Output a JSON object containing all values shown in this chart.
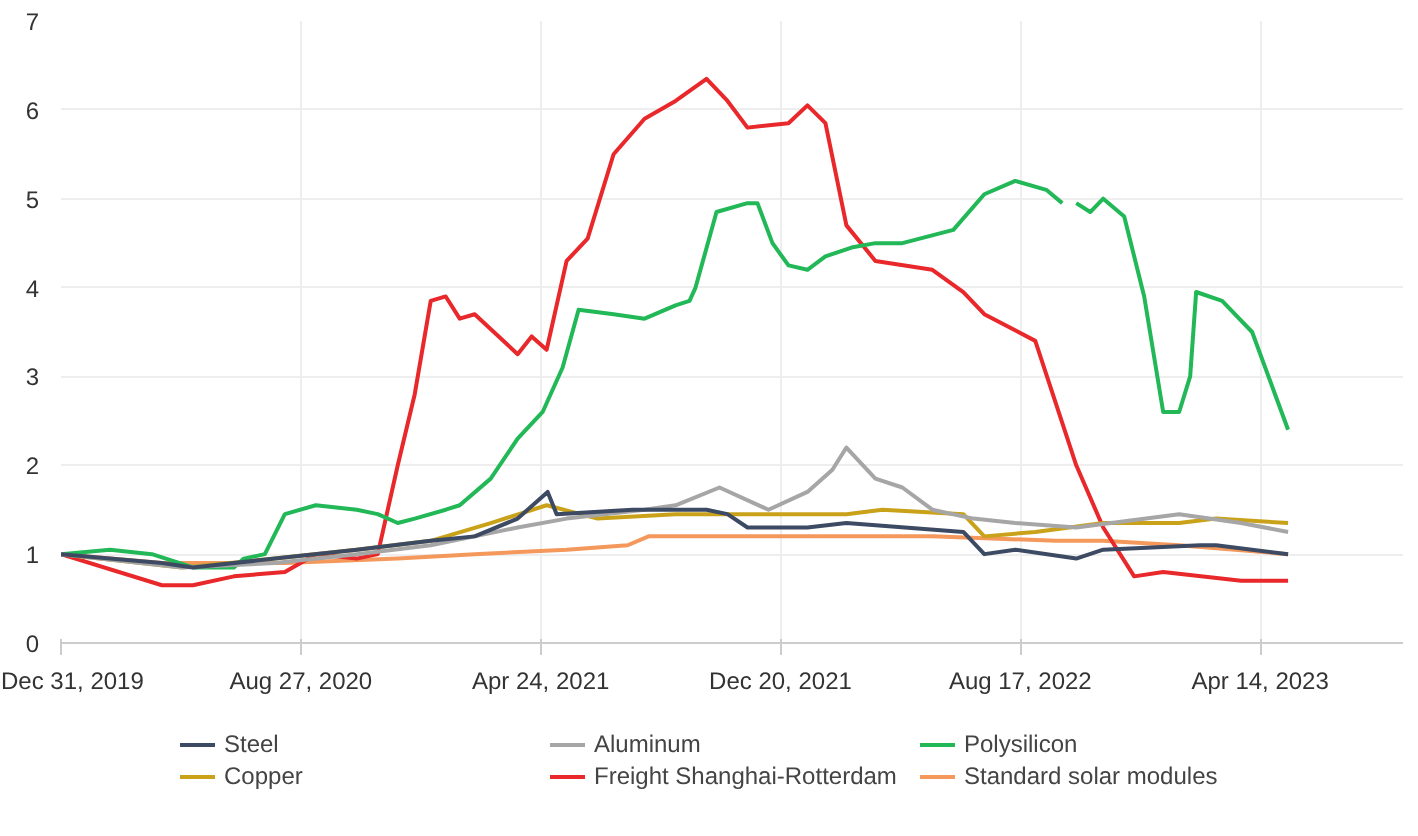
{
  "chart_data": {
    "type": "line",
    "xlim": [
      "2019-12-31",
      "2023-09-04"
    ],
    "ylim": [
      0,
      7
    ],
    "yticks": [
      0,
      1,
      2,
      3,
      4,
      5,
      6,
      7
    ],
    "xticks": [
      {
        "value": "2019-12-31",
        "label": "Dec 31, 2019"
      },
      {
        "value": "2020-08-27",
        "label": "Aug 27, 2020"
      },
      {
        "value": "2021-04-24",
        "label": "Apr 24, 2021"
      },
      {
        "value": "2021-12-20",
        "label": "Dec 20, 2021"
      },
      {
        "value": "2022-08-17",
        "label": "Aug 17, 2022"
      },
      {
        "value": "2023-04-14",
        "label": "Apr 14, 2023"
      }
    ],
    "grid": true,
    "legend": "bottom",
    "line_style": "solid",
    "series": [
      {
        "name": "Steel",
        "color": "#3d4a63",
        "x": [
          "2019-12-31",
          "2020-04-10",
          "2020-05-11",
          "2020-08-01",
          "2020-10-22",
          "2021-01-04",
          "2021-02-17",
          "2021-04-01",
          "2021-05-01",
          "2021-05-10",
          "2021-07-25",
          "2021-10-07",
          "2021-10-28",
          "2021-11-17",
          "2022-01-16",
          "2022-02-24",
          "2022-06-21",
          "2022-07-12",
          "2022-08-12",
          "2022-10-12",
          "2022-11-08",
          "2023-02-13",
          "2023-03-01",
          "2023-05-12"
        ],
        "values": [
          1.0,
          0.9,
          0.85,
          0.95,
          1.05,
          1.15,
          1.2,
          1.4,
          1.7,
          1.45,
          1.5,
          1.5,
          1.45,
          1.3,
          1.3,
          1.35,
          1.25,
          1.0,
          1.05,
          0.95,
          1.05,
          1.1,
          1.1,
          1.0
        ]
      },
      {
        "name": "Aluminum",
        "color": "#a6a6a6",
        "x": [
          "2019-12-31",
          "2020-04-30",
          "2020-08-01",
          "2020-10-22",
          "2021-01-04",
          "2021-04-01",
          "2021-05-20",
          "2021-08-06",
          "2021-09-06",
          "2021-10-20",
          "2021-12-08",
          "2022-01-16",
          "2022-02-10",
          "2022-02-24",
          "2022-03-25",
          "2022-04-21",
          "2022-05-21",
          "2022-07-01",
          "2022-08-12",
          "2022-10-12",
          "2023-01-23",
          "2023-03-26",
          "2023-05-12"
        ],
        "values": [
          1.0,
          0.85,
          0.9,
          1.0,
          1.1,
          1.3,
          1.4,
          1.5,
          1.55,
          1.75,
          1.5,
          1.7,
          1.95,
          2.2,
          1.85,
          1.75,
          1.5,
          1.4,
          1.35,
          1.3,
          1.45,
          1.35,
          1.25
        ]
      },
      {
        "name": "Polysilicon",
        "color": "#22b857",
        "x": [
          "2019-12-31",
          "2020-02-18",
          "2020-03-31",
          "2020-05-11",
          "2020-06-21",
          "2020-07-01",
          "2020-07-22",
          "2020-08-11",
          "2020-09-11",
          "2020-10-22",
          "2020-11-12",
          "2020-12-02",
          "2020-12-19",
          "2021-01-19",
          "2021-02-02",
          "2021-03-05",
          "2021-04-01",
          "2021-04-26",
          "2021-05-16",
          "2021-06-01",
          "2021-07-06",
          "2021-08-06",
          "2021-09-06",
          "2021-09-20",
          "2021-09-26",
          "2021-10-17",
          "2021-11-17",
          "2021-11-27",
          "2021-12-12",
          "2021-12-28",
          "2022-01-16",
          "2022-02-03",
          "2022-03-01",
          "2022-03-25",
          "2022-04-21",
          "2022-06-11",
          "2022-07-12",
          "2022-08-12",
          "2022-09-12",
          "2022-09-28",
          "2022-10-05",
          "2022-10-12",
          "2022-10-26",
          "2022-11-08",
          "2022-11-29",
          "2022-12-19",
          "2023-01-07",
          "2023-01-23",
          "2023-02-03",
          "2023-02-09",
          "2023-03-07",
          "2023-04-06",
          "2023-05-12"
        ],
        "values": [
          1.0,
          1.05,
          1.0,
          0.85,
          0.85,
          0.95,
          1.0,
          1.45,
          1.55,
          1.5,
          1.45,
          1.35,
          1.4,
          1.5,
          1.55,
          1.85,
          2.3,
          2.6,
          3.1,
          3.75,
          3.7,
          3.65,
          3.8,
          3.85,
          4.0,
          4.85,
          4.95,
          4.95,
          4.5,
          4.25,
          4.2,
          4.35,
          4.45,
          4.5,
          4.5,
          4.65,
          5.05,
          5.2,
          5.1,
          4.95,
          null,
          4.95,
          4.85,
          5.0,
          4.8,
          3.9,
          2.6,
          2.6,
          3.0,
          3.95,
          3.85,
          3.5,
          2.4
        ]
      },
      {
        "name": "Copper",
        "color": "#c9a21a",
        "x": [
          "2019-12-31",
          "2020-04-30",
          "2020-08-01",
          "2020-10-22",
          "2021-01-04",
          "2021-03-05",
          "2021-04-30",
          "2021-06-20",
          "2021-09-06",
          "2021-12-08",
          "2022-02-24",
          "2022-04-01",
          "2022-06-21",
          "2022-07-12",
          "2022-09-01",
          "2022-11-08",
          "2023-01-23",
          "2023-03-01",
          "2023-05-12"
        ],
        "values": [
          1.0,
          0.85,
          0.95,
          1.05,
          1.15,
          1.35,
          1.55,
          1.4,
          1.45,
          1.45,
          1.45,
          1.5,
          1.45,
          1.2,
          1.25,
          1.35,
          1.35,
          1.4,
          1.35
        ]
      },
      {
        "name": "Freight Shanghai-Rotterdam",
        "color": "#e8282b",
        "x": [
          "2019-12-31",
          "2020-04-10",
          "2020-05-11",
          "2020-06-21",
          "2020-08-11",
          "2020-09-11",
          "2020-10-22",
          "2020-11-12",
          "2020-12-02",
          "2020-12-19",
          "2021-01-04",
          "2021-01-19",
          "2021-02-02",
          "2021-02-17",
          "2021-04-01",
          "2021-04-15",
          "2021-04-30",
          "2021-05-20",
          "2021-06-10",
          "2021-07-06",
          "2021-08-06",
          "2021-09-06",
          "2021-10-07",
          "2021-10-28",
          "2021-11-17",
          "2021-12-28",
          "2022-01-16",
          "2022-02-03",
          "2022-02-24",
          "2022-03-25",
          "2022-05-21",
          "2022-06-21",
          "2022-07-12",
          "2022-09-01",
          "2022-10-12",
          "2022-11-08",
          "2022-12-09",
          "2023-01-07",
          "2023-03-26",
          "2023-05-12"
        ],
        "values": [
          1.0,
          0.65,
          0.65,
          0.75,
          0.8,
          1.0,
          0.95,
          1.0,
          2.0,
          2.8,
          3.85,
          3.9,
          3.65,
          3.7,
          3.25,
          3.45,
          3.3,
          4.3,
          4.55,
          5.5,
          5.9,
          6.1,
          6.35,
          6.1,
          5.8,
          5.85,
          6.05,
          5.85,
          4.7,
          4.3,
          4.2,
          3.95,
          3.7,
          3.4,
          2.0,
          1.3,
          0.75,
          0.8,
          0.7,
          0.7
        ]
      },
      {
        "name": "Standard solar modules",
        "color": "#f4985c",
        "x": [
          "2019-12-31",
          "2020-04-10",
          "2020-08-11",
          "2020-12-02",
          "2021-02-17",
          "2021-05-20",
          "2021-07-20",
          "2021-08-10",
          "2021-12-08",
          "2022-03-25",
          "2022-05-21",
          "2022-09-22",
          "2022-11-08",
          "2023-01-23",
          "2023-05-12"
        ],
        "values": [
          1.0,
          0.9,
          0.9,
          0.95,
          1.0,
          1.05,
          1.1,
          1.2,
          1.2,
          1.2,
          1.2,
          1.15,
          1.15,
          1.1,
          1.0
        ]
      }
    ]
  }
}
